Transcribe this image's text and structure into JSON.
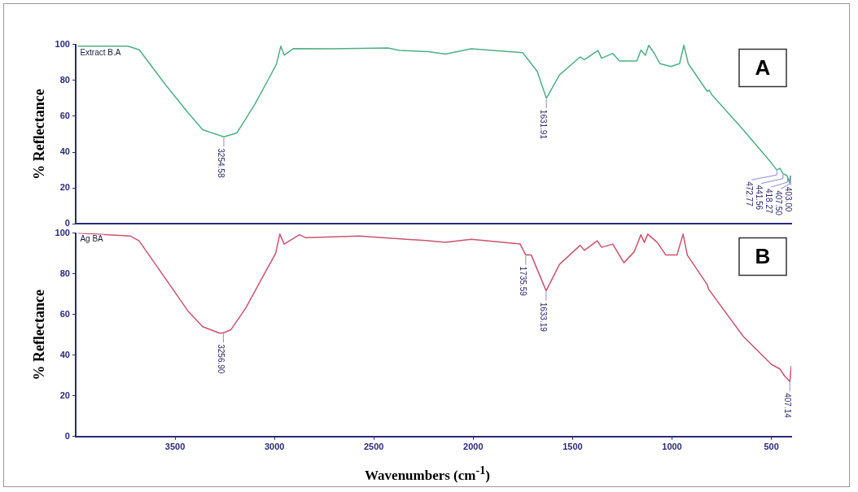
{
  "chart_data": [
    {
      "type": "line",
      "ylabel": "% Reflectance",
      "xlim": [
        4000,
        400
      ],
      "ylim": [
        0,
        100
      ],
      "yticks": [
        0,
        20,
        40,
        60,
        80,
        100
      ],
      "tick_labels": "y",
      "grid": false,
      "legend": false,
      "series": [
        {
          "name": "Extract B.A",
          "color": "#4fae84",
          "x": [
            3990,
            3737,
            3680,
            3551,
            3435,
            3361,
            3254.58,
            3189,
            3102,
            3033,
            2990,
            2968,
            2951,
            2904,
            2714,
            2429,
            2369,
            2226,
            2140,
            2010,
            1751,
            1678,
            1631.91,
            1566,
            1462,
            1441,
            1372,
            1354,
            1298,
            1264,
            1177,
            1156,
            1134,
            1117,
            1091,
            1061,
            1005,
            962,
            940,
            918,
            823,
            812,
            802,
            642,
            500,
            472.77,
            457,
            441.56,
            422,
            418.27,
            409,
            407.5,
            403
          ],
          "values": [
            99,
            99,
            97,
            78,
            62,
            52.5,
            48.5,
            50.7,
            66,
            80,
            89,
            99,
            94,
            97.7,
            97.5,
            98,
            96.6,
            96,
            94.6,
            97.6,
            95.4,
            85,
            70,
            83,
            93,
            91.5,
            96.6,
            92.3,
            95,
            90.8,
            90.8,
            96.9,
            93.9,
            99.5,
            95.4,
            89.3,
            87.7,
            89.3,
            99.5,
            89.3,
            73.9,
            74.5,
            72.3,
            52.5,
            34,
            30,
            31,
            28,
            27,
            26,
            23,
            25,
            27
          ]
        }
      ],
      "annotations": [
        {
          "text": "3254.58",
          "x": 3254.58,
          "y": 48.5
        },
        {
          "text": "1631.91",
          "x": 1631.91,
          "y": 70
        },
        {
          "text": "472.77",
          "x": 472.77,
          "y": 30
        },
        {
          "text": "441.56",
          "x": 441.56,
          "y": 28
        },
        {
          "text": "418.27",
          "x": 418.27,
          "y": 26
        },
        {
          "text": "407.50",
          "x": 407.5,
          "y": 25
        },
        {
          "text": "403.00",
          "x": 403,
          "y": 27
        },
        "A"
      ]
    },
    {
      "type": "line",
      "ylabel": "% Reflectance",
      "xlabel": "Wavenumbers (cm$^{-1}$)",
      "xlim": [
        4000,
        400
      ],
      "ylim": [
        0,
        100
      ],
      "xticks": [
        3500,
        3000,
        2500,
        2000,
        1500,
        1000,
        500
      ],
      "yticks": [
        0,
        20,
        40,
        60,
        80,
        100
      ],
      "grid": false,
      "legend": false,
      "series": [
        {
          "name": "Ag BA",
          "color": "#c8546e",
          "x": [
            3990,
            3724,
            3681,
            3551,
            3435,
            3361,
            3275,
            3256.9,
            3219,
            3145,
            3059,
            2994,
            2973,
            2951,
            2874,
            2843,
            2571,
            2226,
            2140,
            2010,
            1764,
            1735.59,
            1708,
            1633.19,
            1566,
            1462,
            1441,
            1376,
            1354,
            1298,
            1242,
            1190,
            1156,
            1139,
            1122,
            1074,
            1031,
            975,
            944,
            923,
            823,
            815,
            642,
            500,
            457,
            435,
            409,
            407.14,
            400
          ],
          "values": [
            100,
            98.5,
            96.2,
            78,
            61.7,
            54,
            50.8,
            51,
            52.5,
            63,
            78.5,
            90,
            99.5,
            94.6,
            99.2,
            97.7,
            98.5,
            96.2,
            95.4,
            96.9,
            94.6,
            89.2,
            89.2,
            71.6,
            84.6,
            94,
            91.5,
            96.2,
            93,
            94.6,
            85.4,
            90.8,
            99.2,
            95.4,
            99.5,
            95.4,
            89.2,
            89.2,
            99.5,
            89.2,
            74.7,
            72.3,
            49.3,
            35.5,
            33.2,
            30,
            27.2,
            27,
            34.7
          ]
        }
      ],
      "annotations": [
        {
          "text": "3256.90",
          "x": 3256.9,
          "y": 51
        },
        {
          "text": "1735.59",
          "x": 1735.59,
          "y": 89.2
        },
        {
          "text": "1633.19",
          "x": 1633.19,
          "y": 71.6
        },
        {
          "text": "407.14",
          "x": 407.14,
          "y": 27
        },
        "B"
      ]
    }
  ]
}
